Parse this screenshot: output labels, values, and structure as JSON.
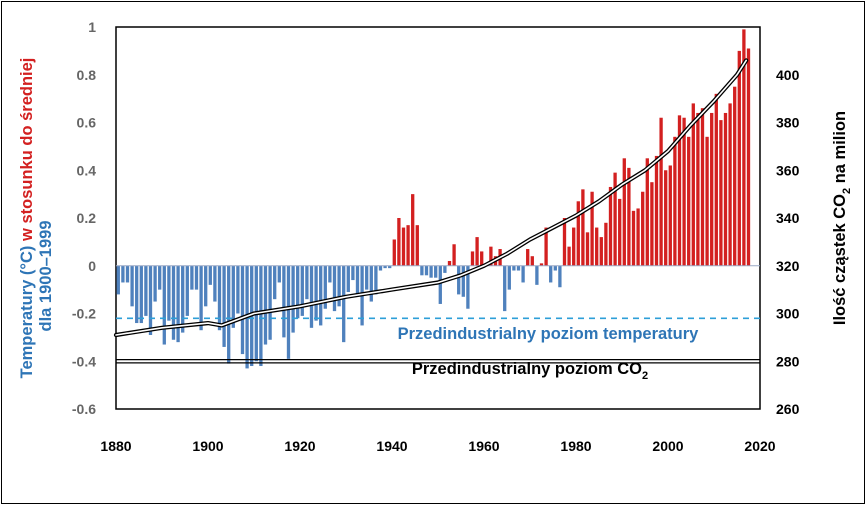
{
  "chart_data": {
    "type": "bar",
    "x_ticks": [
      "1880",
      "1900",
      "1920",
      "1940",
      "1960",
      "1980",
      "2000",
      "2020"
    ],
    "y_left_ticks": [
      "1",
      "0.8",
      "0.6",
      "0.4",
      "0.2",
      "0",
      "-0.2",
      "-0.4",
      "-0.6"
    ],
    "y_right_ticks": [
      "400",
      "380",
      "360",
      "340",
      "320",
      "300",
      "280",
      "260"
    ],
    "ylim_left": [
      -0.6,
      1.0
    ],
    "ylim_right": [
      260,
      420
    ],
    "xlim": [
      1880,
      2020
    ],
    "ylabel_left": {
      "part_blue_1": "Temperatury (°C)",
      "part_red": " w stosunku do średniej",
      "part_blue_2": "dla 1900–1999"
    },
    "ylabel_right": {
      "main": "Ilość cząstek CO",
      "sub": "2",
      "tail": " na milion"
    },
    "annotations": {
      "temp_baseline": "Przedindustrialny poziom temperatury",
      "co2_baseline_main": "Przedindustrialny poziom CO",
      "co2_baseline_sub": "2"
    },
    "temp_baseline_value": -0.22,
    "co2_baseline_value": 280,
    "colors": {
      "positive": "#d32020",
      "negative": "#4f81bd",
      "blue_text": "#2e75b6",
      "red_text": "#d32020",
      "dash": "#2e9fd8"
    },
    "temperature_anomaly": {
      "years": [
        1880,
        1881,
        1882,
        1883,
        1884,
        1885,
        1886,
        1887,
        1888,
        1889,
        1890,
        1891,
        1892,
        1893,
        1894,
        1895,
        1896,
        1897,
        1898,
        1899,
        1900,
        1901,
        1902,
        1903,
        1904,
        1905,
        1906,
        1907,
        1908,
        1909,
        1910,
        1911,
        1912,
        1913,
        1914,
        1915,
        1916,
        1917,
        1918,
        1919,
        1920,
        1921,
        1922,
        1923,
        1924,
        1925,
        1926,
        1927,
        1928,
        1929,
        1930,
        1931,
        1932,
        1933,
        1934,
        1935,
        1936,
        1937,
        1938,
        1939,
        1940,
        1941,
        1942,
        1943,
        1944,
        1945,
        1946,
        1947,
        1948,
        1949,
        1950,
        1951,
        1952,
        1953,
        1954,
        1955,
        1956,
        1957,
        1958,
        1959,
        1960,
        1961,
        1962,
        1963,
        1964,
        1965,
        1966,
        1967,
        1968,
        1969,
        1970,
        1971,
        1972,
        1973,
        1974,
        1975,
        1976,
        1977,
        1978,
        1979,
        1980,
        1981,
        1982,
        1983,
        1984,
        1985,
        1986,
        1987,
        1988,
        1989,
        1990,
        1991,
        1992,
        1993,
        1994,
        1995,
        1996,
        1997,
        1998,
        1999,
        2000,
        2001,
        2002,
        2003,
        2004,
        2005,
        2006,
        2007,
        2008,
        2009,
        2010,
        2011,
        2012,
        2013,
        2014,
        2015,
        2016,
        2017
      ],
      "values": [
        -0.12,
        -0.07,
        -0.07,
        -0.17,
        -0.24,
        -0.24,
        -0.21,
        -0.29,
        -0.15,
        -0.1,
        -0.33,
        -0.23,
        -0.31,
        -0.32,
        -0.28,
        -0.21,
        -0.1,
        -0.1,
        -0.27,
        -0.17,
        -0.08,
        -0.15,
        -0.27,
        -0.34,
        -0.41,
        -0.26,
        -0.2,
        -0.37,
        -0.43,
        -0.42,
        -0.4,
        -0.42,
        -0.33,
        -0.31,
        -0.14,
        -0.07,
        -0.3,
        -0.39,
        -0.28,
        -0.22,
        -0.21,
        -0.14,
        -0.26,
        -0.23,
        -0.25,
        -0.18,
        -0.07,
        -0.19,
        -0.17,
        -0.32,
        -0.11,
        -0.06,
        -0.12,
        -0.25,
        -0.1,
        -0.15,
        -0.12,
        -0.02,
        -0.01,
        -0.01,
        0.11,
        0.2,
        0.16,
        0.17,
        0.3,
        0.17,
        -0.04,
        -0.04,
        -0.05,
        -0.05,
        -0.16,
        -0.03,
        0.02,
        0.09,
        -0.12,
        -0.13,
        -0.18,
        0.06,
        0.12,
        0.06,
        0.01,
        0.08,
        0.04,
        0.07,
        -0.19,
        -0.1,
        -0.02,
        -0.02,
        -0.07,
        0.07,
        0.04,
        -0.08,
        0.01,
        0.16,
        -0.07,
        -0.02,
        -0.09,
        0.2,
        0.08,
        0.16,
        0.27,
        0.32,
        0.14,
        0.31,
        0.16,
        0.12,
        0.18,
        0.33,
        0.39,
        0.28,
        0.45,
        0.41,
        0.23,
        0.24,
        0.31,
        0.45,
        0.35,
        0.46,
        0.62,
        0.4,
        0.42,
        0.54,
        0.63,
        0.62,
        0.54,
        0.68,
        0.64,
        0.66,
        0.54,
        0.64,
        0.72,
        0.61,
        0.64,
        0.68,
        0.75,
        0.9,
        0.99,
        0.91
      ],
      "display_note": "bars rendered 1880–2017"
    },
    "co2_ppm": {
      "x": [
        1880,
        1890,
        1900,
        1903,
        1910,
        1920,
        1930,
        1940,
        1950,
        1955,
        1960,
        1965,
        1970,
        1975,
        1980,
        1985,
        1990,
        1995,
        2000,
        2005,
        2010,
        2015,
        2017
      ],
      "y": [
        291,
        294,
        296,
        295,
        300,
        303,
        307,
        310,
        313,
        316,
        320,
        325,
        331,
        336,
        341,
        347,
        354,
        360,
        368,
        379,
        389,
        400,
        406
      ]
    }
  }
}
